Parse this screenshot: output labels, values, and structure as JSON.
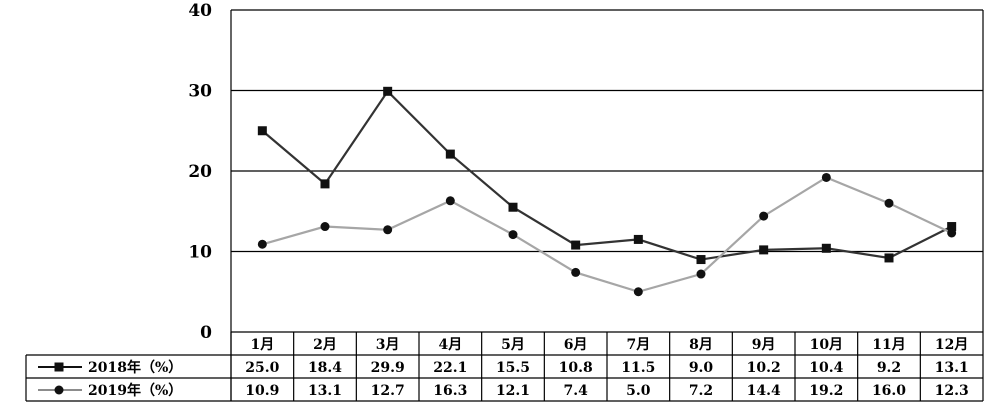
{
  "chart_data": {
    "type": "line",
    "title": "",
    "xlabel": "",
    "ylabel": "",
    "ylim": [
      0,
      40
    ],
    "yticks": [
      "0",
      "10",
      "20",
      "30",
      "40"
    ],
    "grid": "horizontal",
    "legend": "data-table-left",
    "categories": [
      "1月",
      "2月",
      "3月",
      "4月",
      "5月",
      "6月",
      "7月",
      "8月",
      "9月",
      "10月",
      "11月",
      "12月"
    ],
    "series": [
      {
        "name": "2018年（%）",
        "marker": "square",
        "color": "#333333",
        "values": [
          25.0,
          18.4,
          29.9,
          22.1,
          15.5,
          10.8,
          11.5,
          9.0,
          10.2,
          10.4,
          9.2,
          13.1
        ],
        "labels": [
          "25.0",
          "18.4",
          "29.9",
          "22.1",
          "15.5",
          "10.8",
          "11.5",
          "9.0",
          "10.2",
          "10.4",
          "9.2",
          "13.1"
        ]
      },
      {
        "name": "2019年（%）",
        "marker": "circle",
        "color": "#a6a6a6",
        "values": [
          10.9,
          13.1,
          12.7,
          16.3,
          12.1,
          7.4,
          5.0,
          7.2,
          14.4,
          19.2,
          16.0,
          12.3
        ],
        "labels": [
          "10.9",
          "13.1",
          "12.7",
          "16.3",
          "12.1",
          "7.4",
          "5.0",
          "7.2",
          "14.4",
          "19.2",
          "16.0",
          "12.3"
        ]
      }
    ]
  }
}
